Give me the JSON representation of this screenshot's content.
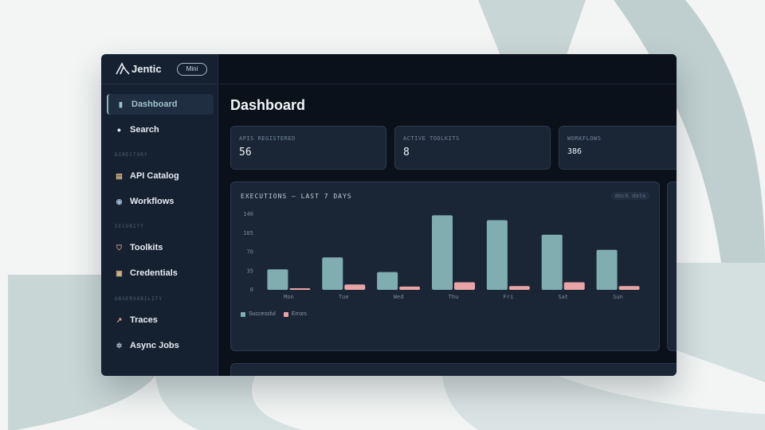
{
  "app": {
    "name": "Jentic",
    "mode_badge": "Mini"
  },
  "sidebar": {
    "items": [
      {
        "label": "Dashboard",
        "icon": "bar-chart-icon",
        "active": true
      },
      {
        "label": "Search",
        "icon": "search-icon"
      },
      {
        "label": "API Catalog",
        "icon": "books-icon"
      },
      {
        "label": "Workflows",
        "icon": "globe-icon"
      },
      {
        "label": "Toolkits",
        "icon": "shield-icon"
      },
      {
        "label": "Credentials",
        "icon": "lock-icon"
      },
      {
        "label": "Traces",
        "icon": "trend-icon"
      },
      {
        "label": "Async Jobs",
        "icon": "gear-icon"
      }
    ],
    "sections": [
      "DIRECTORY",
      "SECURITY",
      "OBSERVABILITY"
    ]
  },
  "page": {
    "title": "Dashboard"
  },
  "stats": [
    {
      "label": "APIS REGISTERED",
      "value": "56"
    },
    {
      "label": "ACTIVE TOOLKITS",
      "value": "8"
    },
    {
      "label": "WORKFLOWS",
      "value": "386"
    }
  ],
  "chart_card": {
    "title": "EXECUTIONS — LAST 7 DAYS",
    "badge": "mock data"
  },
  "colors": {
    "successful": "#7fadb0",
    "errors": "#e8a4a6",
    "accent": "#9fc2c9"
  },
  "chart_data": {
    "type": "bar",
    "categories": [
      "Mon",
      "Tue",
      "Wed",
      "Thu",
      "Fri",
      "Sat",
      "Sun"
    ],
    "series": [
      {
        "name": "Successful",
        "values": [
          38,
          60,
          33,
          138,
          129,
          102,
          74
        ]
      },
      {
        "name": "Errors",
        "values": [
          3,
          10,
          6,
          14,
          7,
          14,
          7
        ]
      }
    ],
    "yticks": [
      "0",
      "35",
      "70",
      "105",
      "140"
    ],
    "ylim": [
      0,
      140
    ],
    "legend_position": "bottom-left",
    "grid": false
  }
}
